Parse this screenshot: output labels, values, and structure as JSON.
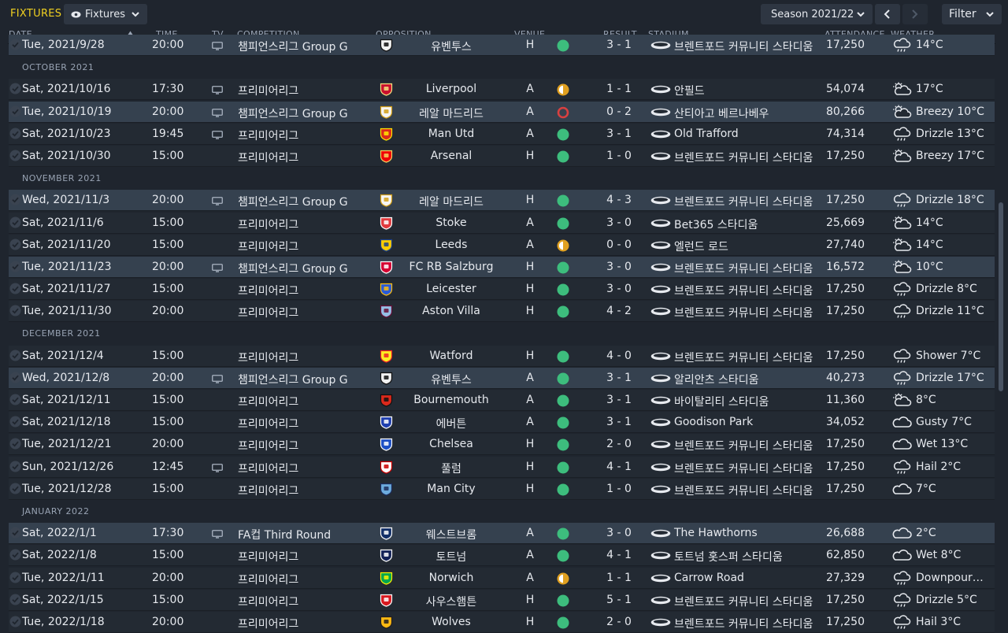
{
  "header": {
    "title": "FIXTURES",
    "view_label": "Fixtures",
    "season_label": "Season 2021/22",
    "filter_label": "Filter"
  },
  "columns": {
    "date": "DATE",
    "time": "TIME",
    "tv": "TV",
    "competition": "COMPETITION",
    "opposition": "OPPOSITION",
    "venue": "VENUE",
    "result": "RESULT",
    "stadium": "STADIUM",
    "attendance": "ATTENDANCE",
    "weather": "WEATHER"
  },
  "colors": {
    "win": "#3dbd7d",
    "draw": "#e0a020",
    "loss": "#d84040",
    "accent": "#f0d020"
  },
  "months": [
    "OCTOBER 2021",
    "NOVEMBER 2021",
    "DECEMBER 2021",
    "JANUARY 2022"
  ],
  "fixtures": [
    {
      "date": "Tue, 2021/9/28",
      "time": "20:00",
      "tv": true,
      "competition": "챔피언스리그 Group G",
      "opposition": "유벤투스",
      "crest": "juventus",
      "venue": "H",
      "outcome": "win",
      "result": "3 - 1",
      "stadium": "브렌트포드 커뮤니티 스타디움",
      "attendance": "17,250",
      "weather": "14°C",
      "weather_icon": "rain-cloud-icon",
      "highlight": true
    },
    {
      "date": "Sat, 2021/10/16",
      "time": "17:30",
      "tv": true,
      "competition": "프리미어리그",
      "opposition": "Liverpool",
      "crest": "liverpool",
      "venue": "A",
      "outcome": "draw",
      "result": "1 - 1",
      "stadium": "안필드",
      "attendance": "54,074",
      "weather": "17°C",
      "weather_icon": "sun-cloud-icon",
      "highlight": false
    },
    {
      "date": "Tue, 2021/10/19",
      "time": "20:00",
      "tv": true,
      "competition": "챔피언스리그 Group G",
      "opposition": "레알 마드리드",
      "crest": "realmadrid",
      "venue": "A",
      "outcome": "loss",
      "result": "0 - 2",
      "stadium": "산티아고 베르나베우",
      "attendance": "80,266",
      "weather": "Breezy 10°C",
      "weather_icon": "sun-cloud-icon",
      "highlight": true
    },
    {
      "date": "Sat, 2021/10/23",
      "time": "19:45",
      "tv": true,
      "competition": "프리미어리그",
      "opposition": "Man Utd",
      "crest": "manutd",
      "venue": "A",
      "outcome": "win",
      "result": "3 - 1",
      "stadium": "Old Trafford",
      "attendance": "74,314",
      "weather": "Drizzle 13°C",
      "weather_icon": "rain-cloud-icon",
      "highlight": false
    },
    {
      "date": "Sat, 2021/10/30",
      "time": "15:00",
      "tv": false,
      "competition": "프리미어리그",
      "opposition": "Arsenal",
      "crest": "arsenal",
      "venue": "H",
      "outcome": "win",
      "result": "1 - 0",
      "stadium": "브렌트포드 커뮤니티 스타디움",
      "attendance": "17,250",
      "weather": "Breezy 17°C",
      "weather_icon": "sun-cloud-icon",
      "highlight": false
    },
    {
      "date": "Wed, 2021/11/3",
      "time": "20:00",
      "tv": true,
      "competition": "챔피언스리그 Group G",
      "opposition": "레알 마드리드",
      "crest": "realmadrid",
      "venue": "H",
      "outcome": "win",
      "result": "4 - 3",
      "stadium": "브렌트포드 커뮤니티 스타디움",
      "attendance": "17,250",
      "weather": "Drizzle 18°C",
      "weather_icon": "rain-cloud-icon",
      "highlight": true
    },
    {
      "date": "Sat, 2021/11/6",
      "time": "15:00",
      "tv": false,
      "competition": "프리미어리그",
      "opposition": "Stoke",
      "crest": "stoke",
      "venue": "A",
      "outcome": "win",
      "result": "3 - 0",
      "stadium": "Bet365 스타디움",
      "attendance": "25,669",
      "weather": "14°C",
      "weather_icon": "sun-cloud-icon",
      "highlight": false
    },
    {
      "date": "Sat, 2021/11/20",
      "time": "15:00",
      "tv": false,
      "competition": "프리미어리그",
      "opposition": "Leeds",
      "crest": "leeds",
      "venue": "A",
      "outcome": "draw",
      "result": "0 - 0",
      "stadium": "엘런드 로드",
      "attendance": "27,740",
      "weather": "14°C",
      "weather_icon": "sun-cloud-icon",
      "highlight": false
    },
    {
      "date": "Tue, 2021/11/23",
      "time": "20:00",
      "tv": true,
      "competition": "챔피언스리그 Group G",
      "opposition": "FC RB Salzburg",
      "crest": "salzburg",
      "venue": "H",
      "outcome": "win",
      "result": "3 - 0",
      "stadium": "브렌트포드 커뮤니티 스타디움",
      "attendance": "16,572",
      "weather": "10°C",
      "weather_icon": "sun-cloud-icon",
      "highlight": true
    },
    {
      "date": "Sat, 2021/11/27",
      "time": "15:00",
      "tv": false,
      "competition": "프리미어리그",
      "opposition": "Leicester",
      "crest": "leicester",
      "venue": "H",
      "outcome": "win",
      "result": "3 - 0",
      "stadium": "브렌트포드 커뮤니티 스타디움",
      "attendance": "17,250",
      "weather": "Drizzle 8°C",
      "weather_icon": "rain-cloud-icon",
      "highlight": false
    },
    {
      "date": "Tue, 2021/11/30",
      "time": "20:00",
      "tv": false,
      "competition": "프리미어리그",
      "opposition": "Aston Villa",
      "crest": "astonvilla",
      "venue": "H",
      "outcome": "win",
      "result": "4 - 2",
      "stadium": "브렌트포드 커뮤니티 스타디움",
      "attendance": "17,250",
      "weather": "Drizzle 11°C",
      "weather_icon": "rain-cloud-icon",
      "highlight": false
    },
    {
      "date": "Sat, 2021/12/4",
      "time": "15:00",
      "tv": false,
      "competition": "프리미어리그",
      "opposition": "Watford",
      "crest": "watford",
      "venue": "H",
      "outcome": "win",
      "result": "4 - 0",
      "stadium": "브렌트포드 커뮤니티 스타디움",
      "attendance": "17,250",
      "weather": "Shower 7°C",
      "weather_icon": "rain-cloud-icon",
      "highlight": false
    },
    {
      "date": "Wed, 2021/12/8",
      "time": "20:00",
      "tv": true,
      "competition": "챔피언스리그 Group G",
      "opposition": "유벤투스",
      "crest": "juventus",
      "venue": "A",
      "outcome": "win",
      "result": "3 - 1",
      "stadium": "알리안츠 스타디움",
      "attendance": "40,273",
      "weather": "Drizzle 17°C",
      "weather_icon": "rain-cloud-icon",
      "highlight": true
    },
    {
      "date": "Sat, 2021/12/11",
      "time": "15:00",
      "tv": false,
      "competition": "프리미어리그",
      "opposition": "Bournemouth",
      "crest": "bournemouth",
      "venue": "A",
      "outcome": "win",
      "result": "3 - 1",
      "stadium": "바이탈리티 스타디움",
      "attendance": "11,360",
      "weather": "8°C",
      "weather_icon": "sun-cloud-icon",
      "highlight": false
    },
    {
      "date": "Sat, 2021/12/18",
      "time": "15:00",
      "tv": false,
      "competition": "프리미어리그",
      "opposition": "에버튼",
      "crest": "everton",
      "venue": "A",
      "outcome": "win",
      "result": "3 - 1",
      "stadium": "Goodison Park",
      "attendance": "34,052",
      "weather": "Gusty 7°C",
      "weather_icon": "cloud-icon",
      "highlight": false
    },
    {
      "date": "Tue, 2021/12/21",
      "time": "20:00",
      "tv": false,
      "competition": "프리미어리그",
      "opposition": "Chelsea",
      "crest": "chelsea",
      "venue": "H",
      "outcome": "win",
      "result": "2 - 0",
      "stadium": "브렌트포드 커뮤니티 스타디움",
      "attendance": "17,250",
      "weather": "Wet 13°C",
      "weather_icon": "cloud-icon",
      "highlight": false
    },
    {
      "date": "Sun, 2021/12/26",
      "time": "12:45",
      "tv": true,
      "competition": "프리미어리그",
      "opposition": "풀럼",
      "crest": "fulham",
      "venue": "H",
      "outcome": "win",
      "result": "4 - 1",
      "stadium": "브렌트포드 커뮤니티 스타디움",
      "attendance": "17,250",
      "weather": "Hail 2°C",
      "weather_icon": "rain-cloud-icon",
      "highlight": false
    },
    {
      "date": "Tue, 2021/12/28",
      "time": "15:00",
      "tv": false,
      "competition": "프리미어리그",
      "opposition": "Man City",
      "crest": "mancity",
      "venue": "H",
      "outcome": "win",
      "result": "1 - 0",
      "stadium": "브렌트포드 커뮤니티 스타디움",
      "attendance": "17,250",
      "weather": "7°C",
      "weather_icon": "cloud-icon",
      "highlight": false
    },
    {
      "date": "Sat, 2022/1/1",
      "time": "17:30",
      "tv": true,
      "competition": "FA컵 Third Round",
      "opposition": "웨스트브롬",
      "crest": "westbrom",
      "venue": "A",
      "outcome": "win",
      "result": "3 - 0",
      "stadium": "The Hawthorns",
      "attendance": "26,688",
      "weather": "2°C",
      "weather_icon": "cloud-icon",
      "highlight": true
    },
    {
      "date": "Sat, 2022/1/8",
      "time": "15:00",
      "tv": false,
      "competition": "프리미어리그",
      "opposition": "토트넘",
      "crest": "tottenham",
      "venue": "A",
      "outcome": "win",
      "result": "4 - 1",
      "stadium": "토트넘 홋스퍼 스타디움",
      "attendance": "62,850",
      "weather": "Wet 8°C",
      "weather_icon": "cloud-icon",
      "highlight": false
    },
    {
      "date": "Tue, 2022/1/11",
      "time": "20:00",
      "tv": false,
      "competition": "프리미어리그",
      "opposition": "Norwich",
      "crest": "norwich",
      "venue": "A",
      "outcome": "draw",
      "result": "1 - 1",
      "stadium": "Carrow Road",
      "attendance": "27,329",
      "weather": "Downpour…",
      "weather_icon": "rain-cloud-icon",
      "highlight": false
    },
    {
      "date": "Sat, 2022/1/15",
      "time": "15:00",
      "tv": false,
      "competition": "프리미어리그",
      "opposition": "사우스햄튼",
      "crest": "southampton",
      "venue": "H",
      "outcome": "win",
      "result": "5 - 1",
      "stadium": "브렌트포드 커뮤니티 스타디움",
      "attendance": "17,250",
      "weather": "Drizzle 5°C",
      "weather_icon": "rain-cloud-icon",
      "highlight": false
    },
    {
      "date": "Tue, 2022/1/18",
      "time": "20:00",
      "tv": false,
      "competition": "프리미어리그",
      "opposition": "Wolves",
      "crest": "wolves",
      "venue": "H",
      "outcome": "win",
      "result": "2 - 0",
      "stadium": "브렌트포드 커뮤니티 스타디움",
      "attendance": "17,250",
      "weather": "Hail 3°C",
      "weather_icon": "rain-cloud-icon",
      "highlight": false
    }
  ],
  "layout_sequence": [
    "f0",
    "m0",
    "f1",
    "f2",
    "f3",
    "f4",
    "m1",
    "f5",
    "f6",
    "f7",
    "f8",
    "f9",
    "f10",
    "m2",
    "f11",
    "f12",
    "f13",
    "f14",
    "f15",
    "f16",
    "f17",
    "m3",
    "f18",
    "f19",
    "f20",
    "f21",
    "f22"
  ],
  "crest_colors": {
    "juventus": [
      "#f2f2f2",
      "#111111"
    ],
    "liverpool": [
      "#c8102e",
      "#f6e27f"
    ],
    "realmadrid": [
      "#f5f5f5",
      "#d4a017"
    ],
    "manutd": [
      "#da291c",
      "#ffe500"
    ],
    "arsenal": [
      "#ef0107",
      "#f4d35e"
    ],
    "stoke": [
      "#e03a3e",
      "#ffffff"
    ],
    "leeds": [
      "#ffcd00",
      "#1d428a"
    ],
    "salzburg": [
      "#d50032",
      "#ffffff"
    ],
    "leicester": [
      "#2a5bd7",
      "#fdbe11"
    ],
    "astonvilla": [
      "#95bfe5",
      "#670e36"
    ],
    "watford": [
      "#fbee23",
      "#ed2127"
    ],
    "bournemouth": [
      "#da291c",
      "#111111"
    ],
    "everton": [
      "#1f3fae",
      "#ffffff"
    ],
    "chelsea": [
      "#1d4fc4",
      "#ffffff"
    ],
    "fulham": [
      "#ffffff",
      "#cc0000"
    ],
    "mancity": [
      "#6cabdd",
      "#1c2c5b"
    ],
    "westbrom": [
      "#122f67",
      "#ffffff"
    ],
    "tottenham": [
      "#132257",
      "#ffffff"
    ],
    "norwich": [
      "#00a650",
      "#fff200"
    ],
    "southampton": [
      "#d71920",
      "#ffffff"
    ],
    "wolves": [
      "#fdb913",
      "#231f20"
    ]
  }
}
